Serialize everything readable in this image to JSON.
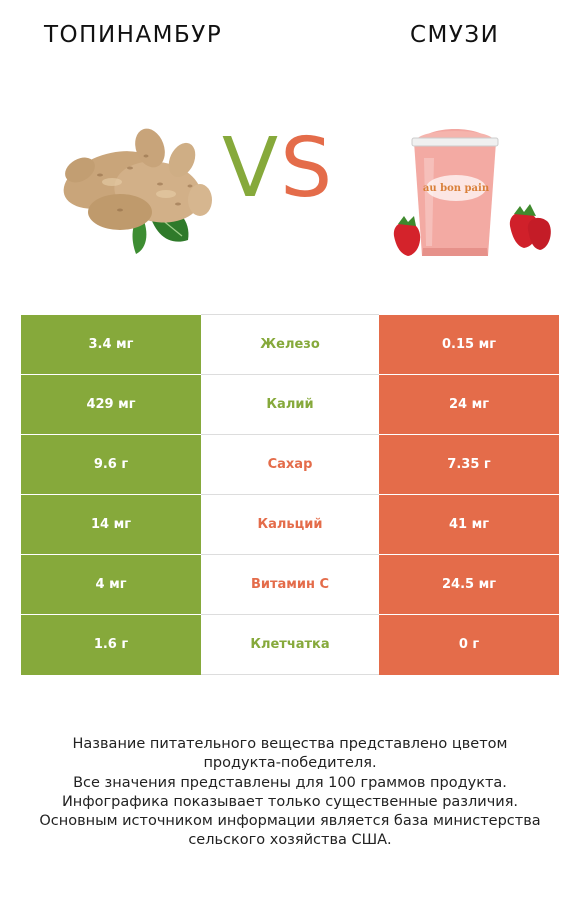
{
  "header": {
    "left_title": "ТОПИНАМБУР",
    "right_title": "СМУЗИ",
    "vs_v": "V",
    "vs_s": "S"
  },
  "colors": {
    "left": "#86a93b",
    "right": "#e46c4a"
  },
  "images": {
    "left": "jerusalem-artichoke-image",
    "right": "smoothie-cup-image",
    "cup_label": "au bon pain"
  },
  "rows": [
    {
      "left": "3.4 мг",
      "nutrient": "Железо",
      "right": "0.15 мг",
      "winner": "left"
    },
    {
      "left": "429 мг",
      "nutrient": "Калий",
      "right": "24 мг",
      "winner": "left"
    },
    {
      "left": "9.6 г",
      "nutrient": "Сахар",
      "right": "7.35 г",
      "winner": "right"
    },
    {
      "left": "14 мг",
      "nutrient": "Кальций",
      "right": "41 мг",
      "winner": "right"
    },
    {
      "left": "4 мг",
      "nutrient": "Витамин С",
      "right": "24.5 мг",
      "winner": "right"
    },
    {
      "left": "1.6 г",
      "nutrient": "Клетчатка",
      "right": "0 г",
      "winner": "left"
    }
  ],
  "notes": [
    "Название питательного вещества представлено цветом",
    "продукта-победителя.",
    "Все значения представлены для 100 граммов продукта.",
    "Инфографика показывает только существенные различия.",
    "Основным источником информации является база министерства",
    "сельского хозяйства США."
  ]
}
